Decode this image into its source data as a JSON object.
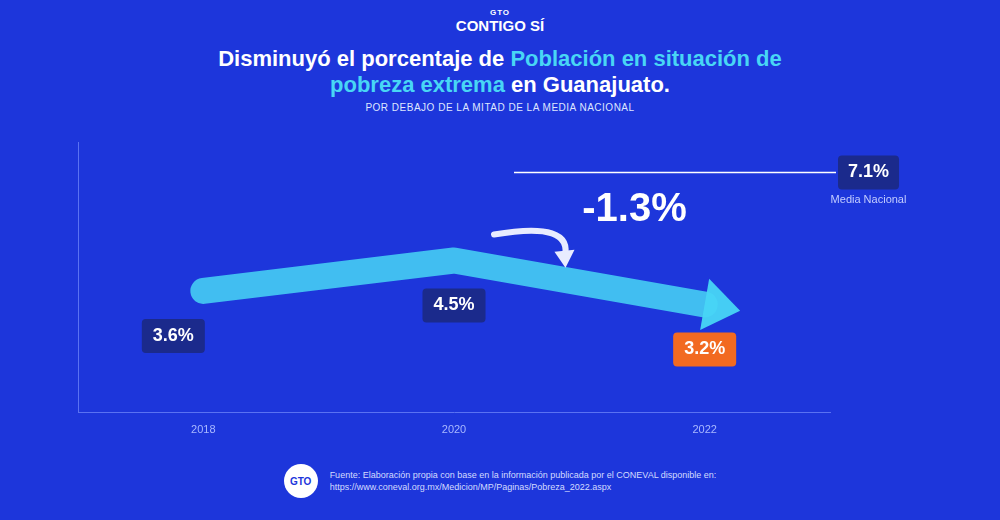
{
  "logo": {
    "small": "GTO",
    "main": "CONTIGO SÍ"
  },
  "footer_logo": "GTO",
  "source": [
    "Fuente: Elaboración propia con base en la información publicada por el CONEVAL disponible en:",
    "https://www.coneval.org.mx/Medicion/MP/Paginas/Pobreza_2022.aspx"
  ],
  "chart_data": {
    "type": "line",
    "title": "Disminuyó el porcentaje de Población en situación de pobreza extrema en Guanajuato.",
    "title_highlight": "Población en situación de pobreza extrema",
    "subtitle": "POR DEBAJO DE LA MITAD DE LA MEDIA NACIONAL",
    "categories": [
      "2018",
      "2020",
      "2022"
    ],
    "values": [
      3.6,
      4.5,
      3.2
    ],
    "value_labels": [
      "3.6%",
      "4.5%",
      "3.2%"
    ],
    "data_labels": true,
    "color": "#48d6f5",
    "colors": [
      "#1b2a8c",
      "#1b2a8c",
      "#f26a21"
    ],
    "ylim": [
      0,
      8
    ],
    "grid": false,
    "tick_labels": "x",
    "reference": {
      "name": "Media Nacional",
      "value": 7.1,
      "label": "7.1%"
    },
    "annotation": "-1.3%"
  }
}
